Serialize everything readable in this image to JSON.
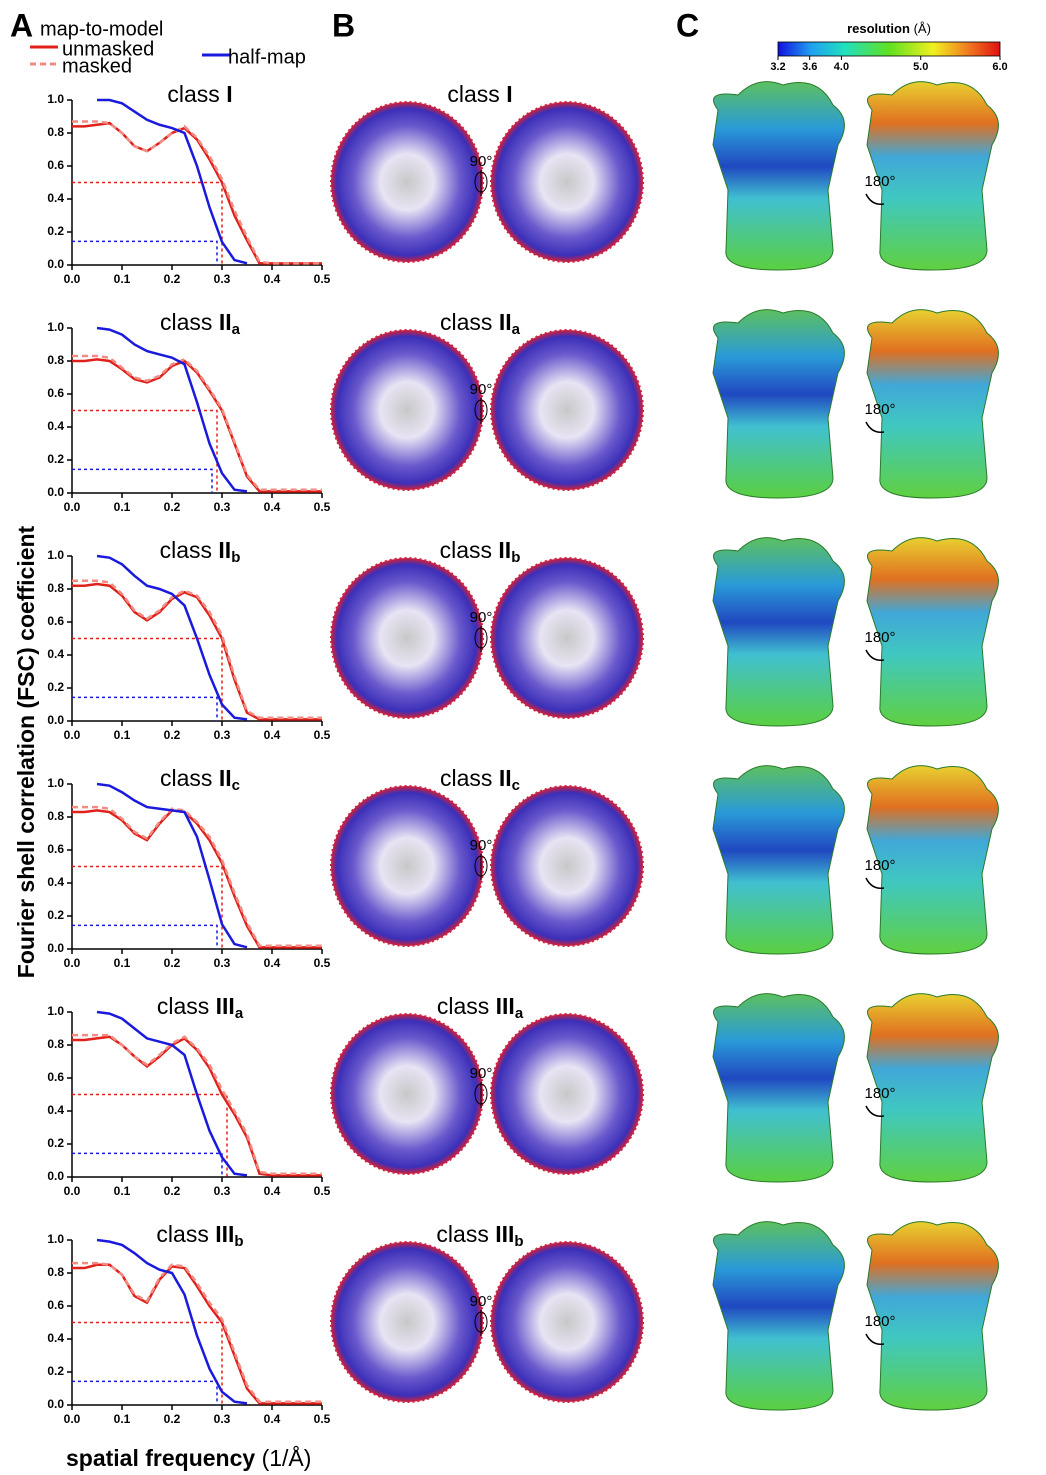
{
  "panels": {
    "a": "A",
    "b": "B",
    "c": "C"
  },
  "legend_title": "map-to-model",
  "y_label": "Fourier shell correlation (FSC) coefficient",
  "x_label": "spatial frequency",
  "x_label_unit": "(1/Å)",
  "rotation_b": "90°",
  "rotation_c": "180°",
  "colorbar": {
    "title": "resolution",
    "unit": "(Å)",
    "lim": [
      3.2,
      6.0
    ],
    "ticks": [
      3.2,
      3.6,
      {
        "value": 4,
        "label": "4.0"
      },
      {
        "value": 5,
        "label": "5.0"
      },
      {
        "value": 6,
        "label": "6.0"
      }
    ]
  },
  "chart_data": [
    {
      "type": "line",
      "title": "class",
      "title_numeral": "I",
      "x": [
        0,
        0.025,
        0.05,
        0.075,
        0.1,
        0.125,
        0.15,
        0.175,
        0.2,
        0.225,
        0.25,
        0.275,
        0.3,
        0.325,
        0.35,
        0.375,
        0.4,
        0.425,
        0.45,
        0.475,
        0.5
      ],
      "xlim": [
        0,
        0.5
      ],
      "ylim": [
        0,
        1
      ],
      "xticks": [
        {
          "value": 0,
          "label": "0.0"
        },
        0.1,
        0.2,
        0.3,
        0.4,
        0.5
      ],
      "yticks": [
        {
          "value": 0,
          "label": "0.0"
        },
        0.2,
        0.4,
        0.6,
        0.8,
        {
          "value": 1,
          "label": "1.0"
        }
      ],
      "series": [
        {
          "name": "unmasked",
          "color": "#e0201b",
          "values": [
            0.84,
            0.84,
            0.85,
            0.86,
            0.8,
            0.72,
            0.69,
            0.74,
            0.8,
            0.83,
            0.76,
            0.64,
            0.5,
            0.3,
            0.15,
            0.01,
            0.01,
            0.01,
            0.01,
            0.01,
            0.01
          ]
        },
        {
          "name": "masked",
          "color": "#f28b82",
          "dashed": true,
          "values": [
            0.87,
            0.87,
            0.87,
            0.86,
            0.8,
            0.72,
            0.69,
            0.74,
            0.8,
            0.84,
            0.77,
            0.66,
            0.52,
            0.33,
            0.17,
            0.02,
            0.01,
            0.01,
            0.01,
            0.01,
            0.01
          ]
        },
        {
          "name": "half-map",
          "color": "#1a1add",
          "values": [
            null,
            null,
            1,
            1,
            0.98,
            0.93,
            0.88,
            0.85,
            0.83,
            0.8,
            0.6,
            0.35,
            0.14,
            0.03,
            0.01,
            null,
            null,
            null,
            null,
            null,
            null
          ]
        }
      ],
      "reference_lines": [
        {
          "y": 0.5,
          "x": 0.3,
          "color": "#e0201b"
        },
        {
          "y": 0.143,
          "x": 0.29,
          "color": "#1a1add"
        }
      ]
    },
    {
      "type": "line",
      "title": "class",
      "title_numeral": "II",
      "title_subscript": "a",
      "x": [
        0,
        0.025,
        0.05,
        0.075,
        0.1,
        0.125,
        0.15,
        0.175,
        0.2,
        0.225,
        0.25,
        0.275,
        0.3,
        0.325,
        0.35,
        0.375,
        0.4,
        0.425,
        0.45,
        0.475,
        0.5
      ],
      "xlim": [
        0,
        0.5
      ],
      "ylim": [
        0,
        1
      ],
      "xticks": [
        {
          "value": 0,
          "label": "0.0"
        },
        0.1,
        0.2,
        0.3,
        0.4,
        0.5
      ],
      "yticks": [
        {
          "value": 0,
          "label": "0.0"
        },
        0.2,
        0.4,
        0.6,
        0.8,
        {
          "value": 1,
          "label": "1.0"
        }
      ],
      "series": [
        {
          "name": "unmasked",
          "color": "#e0201b",
          "values": [
            0.8,
            0.8,
            0.81,
            0.8,
            0.75,
            0.69,
            0.67,
            0.7,
            0.77,
            0.8,
            0.73,
            0.62,
            0.5,
            0.3,
            0.1,
            0.01,
            0.01,
            0.01,
            0.01,
            0.01,
            0.01
          ]
        },
        {
          "name": "masked",
          "color": "#f28b82",
          "dashed": true,
          "values": [
            0.83,
            0.83,
            0.83,
            0.82,
            0.76,
            0.7,
            0.68,
            0.71,
            0.78,
            0.81,
            0.74,
            0.63,
            0.51,
            0.31,
            0.11,
            0.02,
            0.02,
            0.02,
            0.02,
            0.02,
            0.02
          ]
        },
        {
          "name": "half-map",
          "color": "#1a1add",
          "values": [
            null,
            null,
            1,
            0.99,
            0.96,
            0.9,
            0.86,
            0.84,
            0.82,
            0.78,
            0.55,
            0.3,
            0.12,
            0.02,
            0.01,
            null,
            null,
            null,
            null,
            null,
            null
          ]
        }
      ],
      "reference_lines": [
        {
          "y": 0.5,
          "x": 0.29,
          "color": "#e0201b"
        },
        {
          "y": 0.143,
          "x": 0.28,
          "color": "#1a1add"
        }
      ]
    },
    {
      "type": "line",
      "title": "class",
      "title_numeral": "II",
      "title_subscript": "b",
      "x": [
        0,
        0.025,
        0.05,
        0.075,
        0.1,
        0.125,
        0.15,
        0.175,
        0.2,
        0.225,
        0.25,
        0.275,
        0.3,
        0.325,
        0.35,
        0.375,
        0.4,
        0.425,
        0.45,
        0.475,
        0.5
      ],
      "xlim": [
        0,
        0.5
      ],
      "ylim": [
        0,
        1
      ],
      "xticks": [
        {
          "value": 0,
          "label": "0.0"
        },
        0.1,
        0.2,
        0.3,
        0.4,
        0.5
      ],
      "yticks": [
        {
          "value": 0,
          "label": "0.0"
        },
        0.2,
        0.4,
        0.6,
        0.8,
        {
          "value": 1,
          "label": "1.0"
        }
      ],
      "series": [
        {
          "name": "unmasked",
          "color": "#e0201b",
          "values": [
            0.82,
            0.82,
            0.83,
            0.82,
            0.76,
            0.66,
            0.61,
            0.66,
            0.74,
            0.78,
            0.75,
            0.64,
            0.5,
            0.25,
            0.05,
            0.01,
            0.01,
            0.01,
            0.01,
            0.01,
            0.01
          ]
        },
        {
          "name": "masked",
          "color": "#f28b82",
          "dashed": true,
          "values": [
            0.85,
            0.85,
            0.85,
            0.84,
            0.77,
            0.67,
            0.62,
            0.67,
            0.75,
            0.79,
            0.76,
            0.66,
            0.52,
            0.27,
            0.06,
            0.02,
            0.02,
            0.02,
            0.02,
            0.02,
            0.02
          ]
        },
        {
          "name": "half-map",
          "color": "#1a1add",
          "values": [
            null,
            null,
            1,
            0.99,
            0.95,
            0.88,
            0.82,
            0.8,
            0.77,
            0.7,
            0.5,
            0.28,
            0.1,
            0.02,
            0.01,
            null,
            null,
            null,
            null,
            null,
            null
          ]
        }
      ],
      "reference_lines": [
        {
          "y": 0.5,
          "x": 0.3,
          "color": "#e0201b"
        },
        {
          "y": 0.143,
          "x": 0.29,
          "color": "#1a1add"
        }
      ]
    },
    {
      "type": "line",
      "title": "class",
      "title_numeral": "II",
      "title_subscript": "c",
      "x": [
        0,
        0.025,
        0.05,
        0.075,
        0.1,
        0.125,
        0.15,
        0.175,
        0.2,
        0.225,
        0.25,
        0.275,
        0.3,
        0.325,
        0.35,
        0.375,
        0.4,
        0.425,
        0.45,
        0.475,
        0.5
      ],
      "xlim": [
        0,
        0.5
      ],
      "ylim": [
        0,
        1
      ],
      "xticks": [
        {
          "value": 0,
          "label": "0.0"
        },
        0.1,
        0.2,
        0.3,
        0.4,
        0.5
      ],
      "yticks": [
        {
          "value": 0,
          "label": "0.0"
        },
        0.2,
        0.4,
        0.6,
        0.8,
        {
          "value": 1,
          "label": "1.0"
        }
      ],
      "series": [
        {
          "name": "unmasked",
          "color": "#e0201b",
          "values": [
            0.83,
            0.83,
            0.84,
            0.83,
            0.78,
            0.7,
            0.66,
            0.76,
            0.84,
            0.83,
            0.76,
            0.66,
            0.52,
            0.32,
            0.14,
            0.01,
            0.01,
            0.01,
            0.01,
            0.01,
            0.01
          ]
        },
        {
          "name": "masked",
          "color": "#f28b82",
          "dashed": true,
          "values": [
            0.86,
            0.86,
            0.86,
            0.85,
            0.79,
            0.71,
            0.67,
            0.77,
            0.85,
            0.84,
            0.77,
            0.68,
            0.54,
            0.34,
            0.16,
            0.02,
            0.02,
            0.02,
            0.02,
            0.02,
            0.02
          ]
        },
        {
          "name": "half-map",
          "color": "#1a1add",
          "values": [
            null,
            null,
            1,
            0.99,
            0.95,
            0.9,
            0.86,
            0.85,
            0.84,
            0.83,
            0.68,
            0.42,
            0.15,
            0.03,
            0.01,
            null,
            null,
            null,
            null,
            null,
            null
          ]
        }
      ],
      "reference_lines": [
        {
          "y": 0.5,
          "x": 0.3,
          "color": "#e0201b"
        },
        {
          "y": 0.143,
          "x": 0.29,
          "color": "#1a1add"
        }
      ]
    },
    {
      "type": "line",
      "title": "class",
      "title_numeral": "III",
      "title_subscript": "a",
      "x": [
        0,
        0.025,
        0.05,
        0.075,
        0.1,
        0.125,
        0.15,
        0.175,
        0.2,
        0.225,
        0.25,
        0.275,
        0.3,
        0.325,
        0.35,
        0.375,
        0.4,
        0.425,
        0.45,
        0.475,
        0.5
      ],
      "xlim": [
        0,
        0.5
      ],
      "ylim": [
        0,
        1
      ],
      "xticks": [
        {
          "value": 0,
          "label": "0.0"
        },
        0.1,
        0.2,
        0.3,
        0.4,
        0.5
      ],
      "yticks": [
        {
          "value": 0,
          "label": "0.0"
        },
        0.2,
        0.4,
        0.6,
        0.8,
        {
          "value": 1,
          "label": "1.0"
        }
      ],
      "series": [
        {
          "name": "unmasked",
          "color": "#e0201b",
          "values": [
            0.83,
            0.83,
            0.84,
            0.85,
            0.8,
            0.73,
            0.67,
            0.73,
            0.8,
            0.84,
            0.77,
            0.66,
            0.5,
            0.38,
            0.24,
            0.02,
            0.01,
            0.01,
            0.01,
            0.01,
            0.01
          ]
        },
        {
          "name": "masked",
          "color": "#f28b82",
          "dashed": true,
          "values": [
            0.86,
            0.86,
            0.86,
            0.86,
            0.8,
            0.73,
            0.68,
            0.74,
            0.81,
            0.85,
            0.78,
            0.68,
            0.53,
            0.4,
            0.26,
            0.03,
            0.02,
            0.02,
            0.02,
            0.02,
            0.02
          ]
        },
        {
          "name": "half-map",
          "color": "#1a1add",
          "values": [
            null,
            null,
            1,
            0.99,
            0.96,
            0.9,
            0.84,
            0.82,
            0.8,
            0.74,
            0.5,
            0.28,
            0.12,
            0.02,
            0.01,
            null,
            null,
            null,
            null,
            null,
            null
          ]
        }
      ],
      "reference_lines": [
        {
          "y": 0.5,
          "x": 0.31,
          "color": "#e0201b"
        },
        {
          "y": 0.143,
          "x": 0.3,
          "color": "#1a1add"
        }
      ]
    },
    {
      "type": "line",
      "title": "class",
      "title_numeral": "III",
      "title_subscript": "b",
      "x": [
        0,
        0.025,
        0.05,
        0.075,
        0.1,
        0.125,
        0.15,
        0.175,
        0.2,
        0.225,
        0.25,
        0.275,
        0.3,
        0.325,
        0.35,
        0.375,
        0.4,
        0.425,
        0.45,
        0.475,
        0.5
      ],
      "xlim": [
        0,
        0.5
      ],
      "ylim": [
        0,
        1
      ],
      "xticks": [
        {
          "value": 0,
          "label": "0.0"
        },
        0.1,
        0.2,
        0.3,
        0.4,
        0.5
      ],
      "yticks": [
        {
          "value": 0,
          "label": "0.0"
        },
        0.2,
        0.4,
        0.6,
        0.8,
        {
          "value": 1,
          "label": "1.0"
        }
      ],
      "series": [
        {
          "name": "unmasked",
          "color": "#e0201b",
          "values": [
            0.83,
            0.83,
            0.85,
            0.85,
            0.79,
            0.66,
            0.62,
            0.76,
            0.84,
            0.83,
            0.72,
            0.6,
            0.5,
            0.3,
            0.1,
            0.01,
            0.01,
            0.01,
            0.01,
            0.01,
            0.01
          ]
        },
        {
          "name": "masked",
          "color": "#f28b82",
          "dashed": true,
          "values": [
            0.86,
            0.86,
            0.86,
            0.85,
            0.79,
            0.67,
            0.63,
            0.77,
            0.85,
            0.84,
            0.74,
            0.62,
            0.52,
            0.32,
            0.12,
            0.02,
            0.02,
            0.02,
            0.02,
            0.02,
            0.02
          ]
        },
        {
          "name": "half-map",
          "color": "#1a1add",
          "values": [
            null,
            null,
            1,
            0.99,
            0.97,
            0.92,
            0.86,
            0.82,
            0.8,
            0.67,
            0.42,
            0.22,
            0.08,
            0.02,
            0.01,
            null,
            null,
            null,
            null,
            null,
            null
          ]
        }
      ],
      "reference_lines": [
        {
          "y": 0.5,
          "x": 0.3,
          "color": "#e0201b"
        },
        {
          "y": 0.143,
          "x": 0.29,
          "color": "#1a1add"
        }
      ]
    }
  ]
}
